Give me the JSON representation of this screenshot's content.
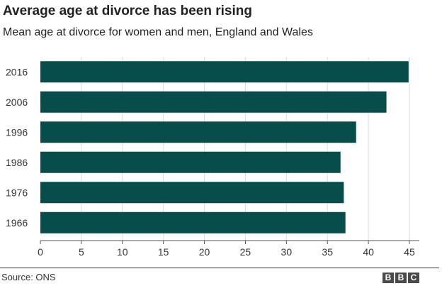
{
  "chart_data": {
    "type": "bar",
    "orientation": "horizontal",
    "title": "Average age at divorce has been rising",
    "subtitle": "Mean age at divorce for women and men, England and Wales",
    "categories": [
      "2016",
      "2006",
      "1996",
      "1986",
      "1976",
      "1966"
    ],
    "values": [
      44.9,
      42.2,
      38.5,
      36.6,
      37.0,
      37.2
    ],
    "xlim": [
      0,
      45
    ],
    "xticks": [
      "0",
      "5",
      "10",
      "15",
      "20",
      "25",
      "30",
      "35",
      "40",
      "45"
    ],
    "grid": "vertical",
    "bar_color": "#064d4b",
    "grid_color": "#dddddd"
  },
  "footer": {
    "source": "Source: ONS",
    "logo_letters": [
      "B",
      "B",
      "C"
    ]
  }
}
